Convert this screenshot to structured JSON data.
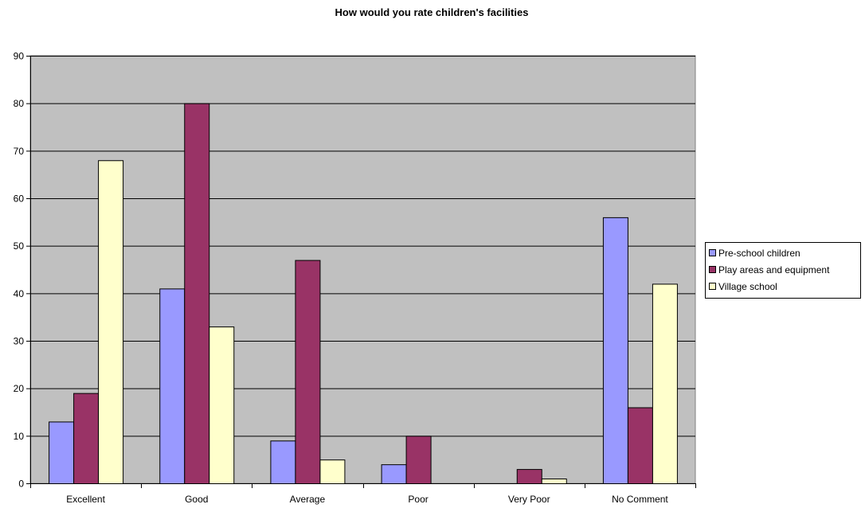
{
  "chart_data": {
    "type": "bar",
    "title": "How would you rate children's facilities",
    "xlabel": "",
    "ylabel": "",
    "categories": [
      "Excellent",
      "Good",
      "Average",
      "Poor",
      "Very Poor",
      "No Comment"
    ],
    "series": [
      {
        "name": "Pre-school children",
        "values": [
          13,
          41,
          9,
          4,
          0,
          56
        ]
      },
      {
        "name": "Play areas and equipment",
        "values": [
          19,
          80,
          47,
          10,
          3,
          16
        ]
      },
      {
        "name": "Village school",
        "values": [
          68,
          33,
          5,
          0,
          1,
          42
        ]
      }
    ],
    "ylim": [
      0,
      90
    ],
    "yticks": [
      0,
      10,
      20,
      30,
      40,
      50,
      60,
      70,
      80,
      90
    ],
    "grid": true,
    "legend_position": "right",
    "colors": {
      "plot_background": "#c0c0c0",
      "gridline": "#000000",
      "series": [
        "#9999ff",
        "#993366",
        "#ffffcc"
      ]
    }
  }
}
